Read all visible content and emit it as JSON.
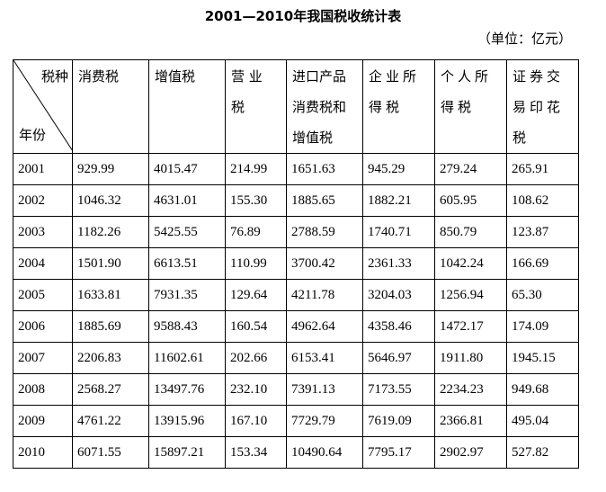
{
  "title": "2001—2010年我国税收统计表",
  "unit": "（单位：亿元）",
  "table": {
    "corner_top": "税种",
    "corner_bottom": "年份",
    "columns": [
      [
        "消费税"
      ],
      [
        "增值税"
      ],
      [
        "营  业",
        "税"
      ],
      [
        "进口产品",
        "消费税和",
        "增值税"
      ],
      [
        "企业所",
        "得税"
      ],
      [
        "个人所",
        "得税"
      ],
      [
        "证券交",
        "易印花",
        "税"
      ]
    ],
    "rows": [
      [
        "2001",
        "929.99",
        "4015.47",
        "214.99",
        "1651.63",
        "945.29",
        "279.24",
        "265.91"
      ],
      [
        "2002",
        "1046.32",
        "4631.01",
        "155.30",
        "1885.65",
        "1882.21",
        "605.95",
        "108.62"
      ],
      [
        "2003",
        "1182.26",
        "5425.55",
        "76.89",
        "2788.59",
        "1740.71",
        "850.79",
        "123.87"
      ],
      [
        "2004",
        "1501.90",
        "6613.51",
        "110.99",
        "3700.42",
        "2361.33",
        "1042.24",
        "166.69"
      ],
      [
        "2005",
        "1633.81",
        "7931.35",
        "129.64",
        "4211.78",
        "3204.03",
        "1256.94",
        "65.30"
      ],
      [
        "2006",
        "1885.69",
        "9588.43",
        "160.54",
        "4962.64",
        "4358.46",
        "1472.17",
        "174.09"
      ],
      [
        "2007",
        "2206.83",
        "11602.61",
        "202.66",
        "6153.41",
        "5646.97",
        "1911.80",
        "1945.15"
      ],
      [
        "2008",
        "2568.27",
        "13497.76",
        "232.10",
        "7391.13",
        "7173.55",
        "2234.23",
        "949.68"
      ],
      [
        "2009",
        "4761.22",
        "13915.96",
        "167.10",
        "7729.79",
        "7619.09",
        "2366.81",
        "495.04"
      ],
      [
        "2010",
        "6071.55",
        "15897.21",
        "153.34",
        "10490.64",
        "7795.17",
        "2902.97",
        "527.82"
      ]
    ]
  }
}
